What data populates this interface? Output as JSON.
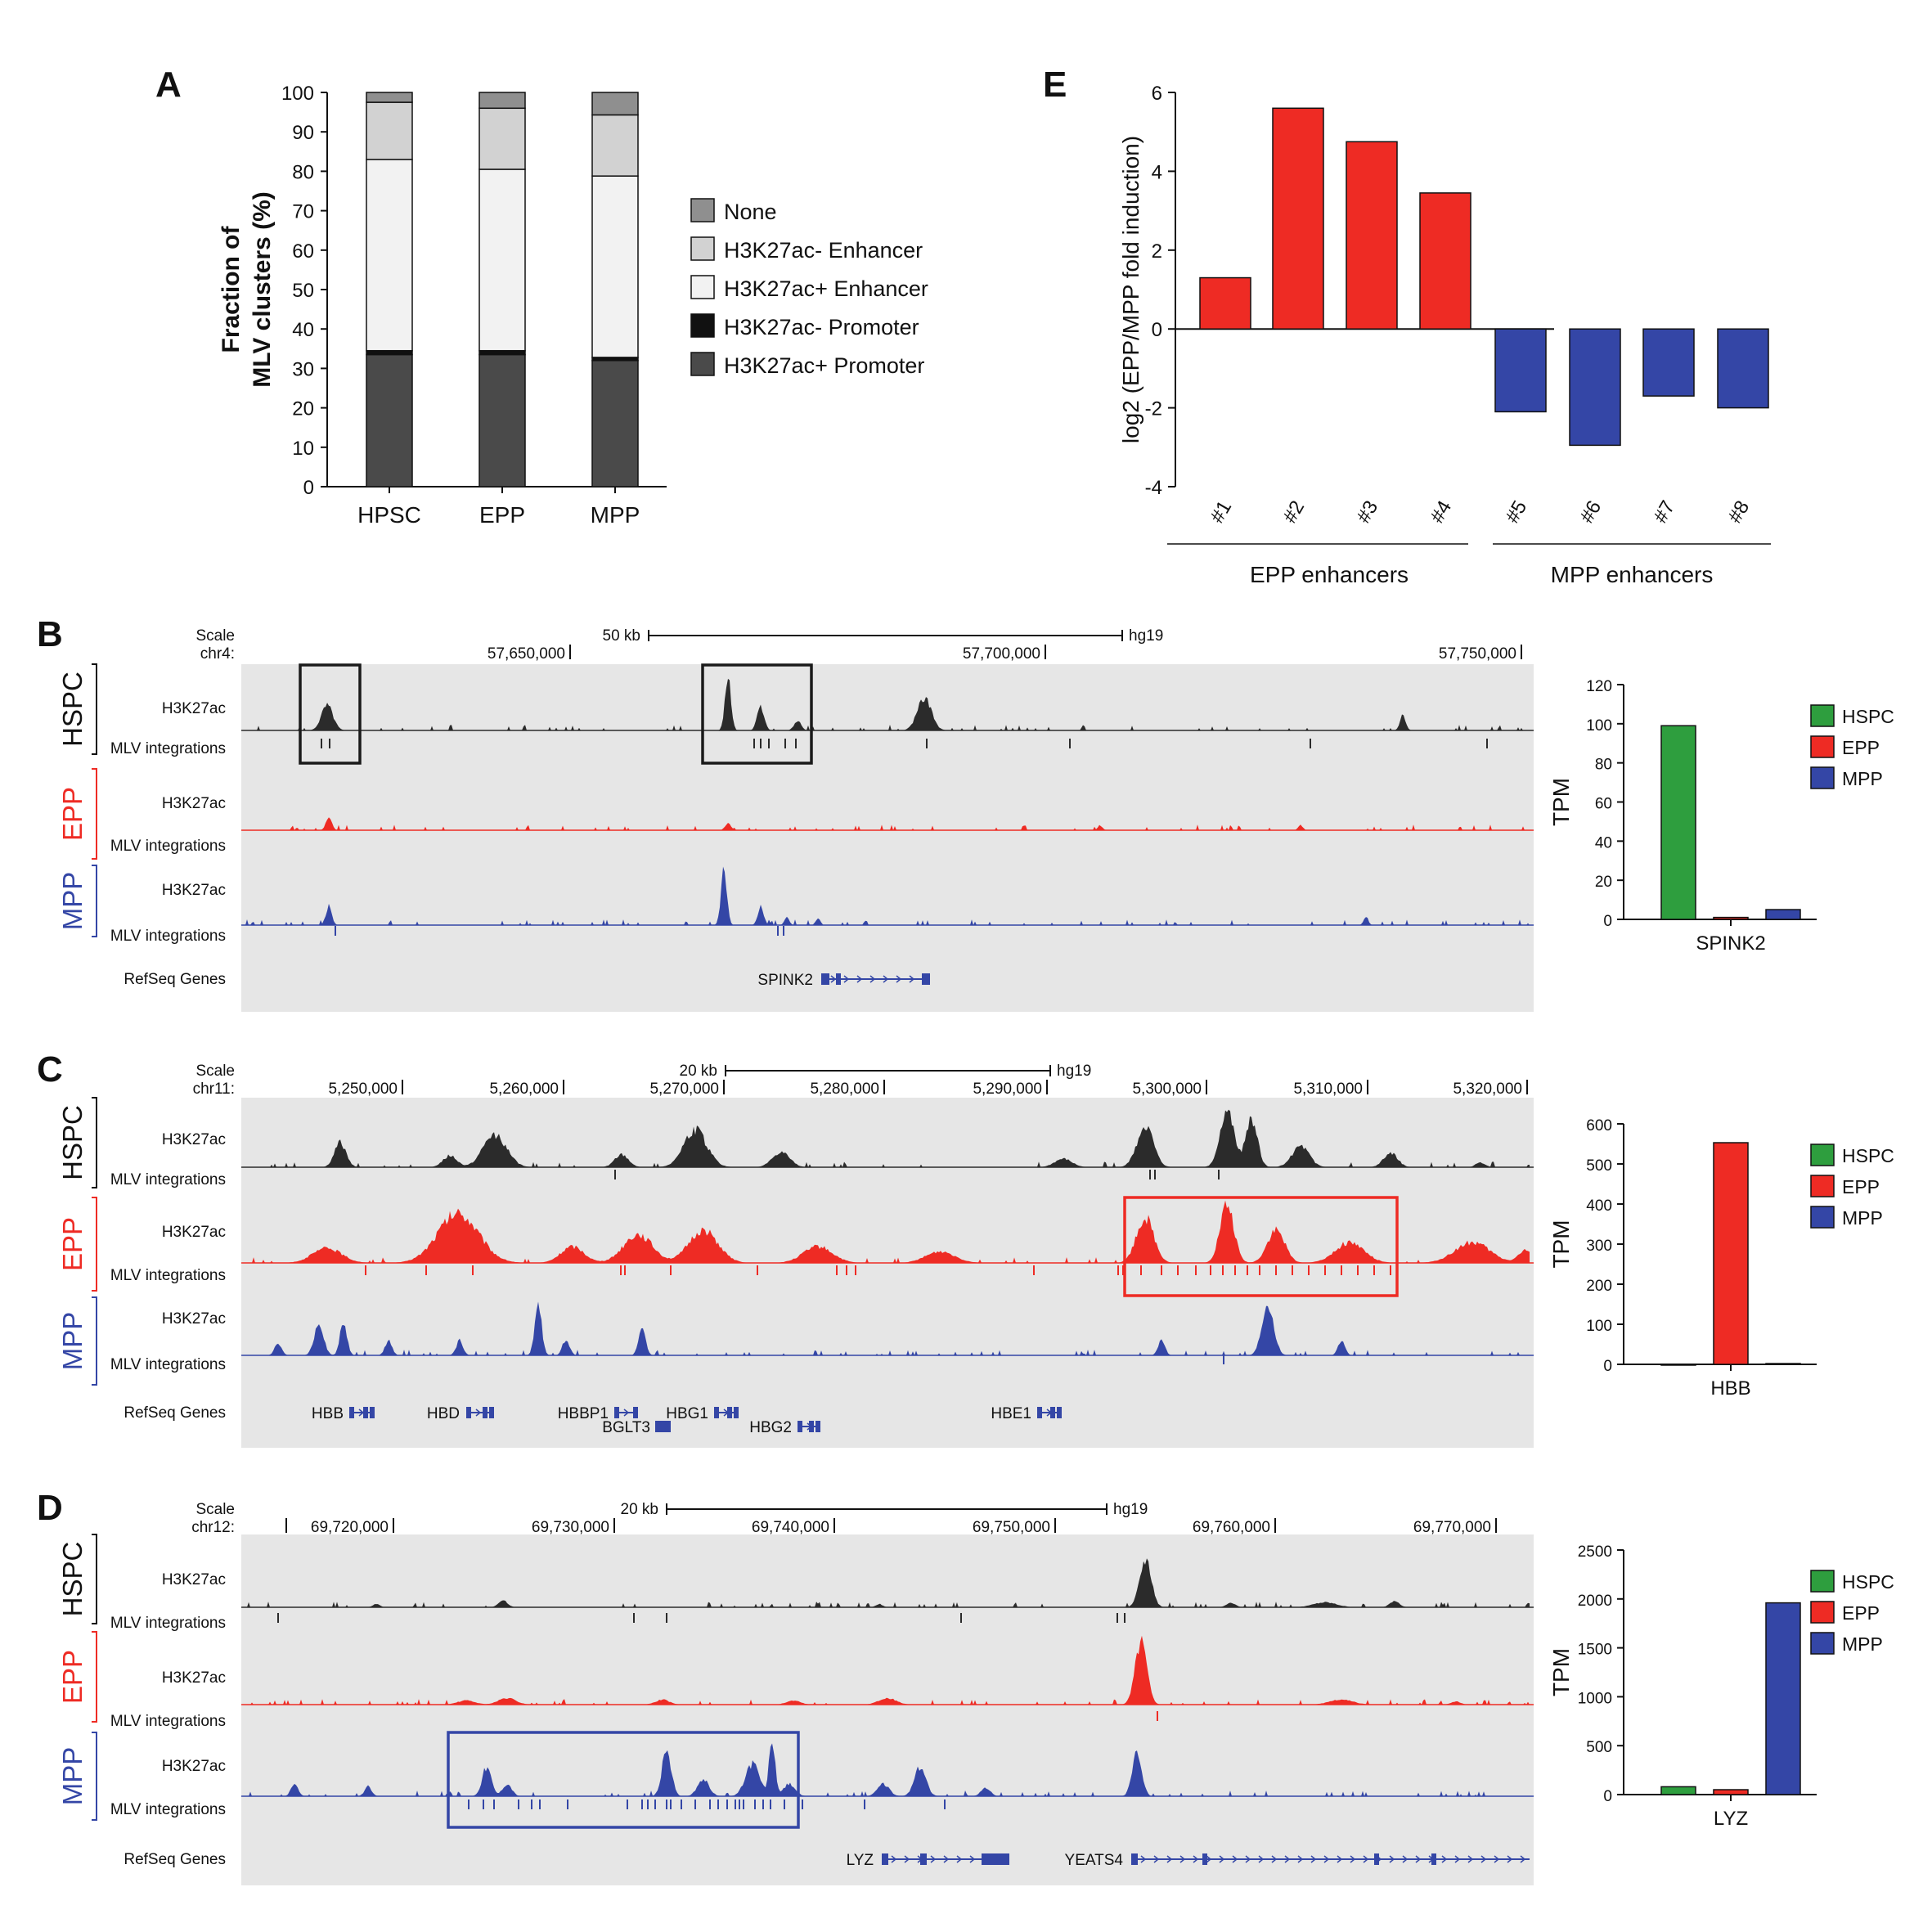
{
  "panel_labels": {
    "A": "A",
    "B": "B",
    "C": "C",
    "D": "D",
    "E": "E"
  },
  "colors": {
    "hspc": "#2e9e3e",
    "epp": "#ee2b24",
    "mpp": "#3446a6",
    "hspc_track": "#2b2b2b",
    "none": "#8f8f8f",
    "k27neg_enh": "#d2d2d2",
    "k27pos_enh": "#f2f2f2",
    "k27neg_prom": "#111111",
    "k27pos_prom": "#4a4a4a"
  },
  "chart_data": [
    {
      "id": "A",
      "type": "bar",
      "stacked": true,
      "categories": [
        "HPSC",
        "EPP",
        "MPP"
      ],
      "ylabel": [
        "Fraction of",
        "MLV clusters (%)"
      ],
      "ylim": [
        0,
        100
      ],
      "yticks": [
        "0",
        "10",
        "20",
        "30",
        "40",
        "50",
        "60",
        "70",
        "80",
        "90",
        "100"
      ],
      "series": [
        {
          "name": "H3K27ac+ Promoter",
          "color": "#4a4a4a",
          "values": [
            33.5,
            33.5,
            32
          ]
        },
        {
          "name": "H3K27ac- Promoter",
          "color": "#111111",
          "values": [
            1,
            1,
            0.8
          ]
        },
        {
          "name": "H3K27ac+ Enhancer",
          "color": "#f2f2f2",
          "values": [
            48.5,
            46,
            46
          ]
        },
        {
          "name": "H3K27ac- Enhancer",
          "color": "#d2d2d2",
          "values": [
            14.5,
            15.5,
            15.5
          ]
        },
        {
          "name": "None",
          "color": "#8f8f8f",
          "values": [
            2.5,
            4,
            5.7
          ]
        }
      ],
      "legend": [
        "None",
        "H3K27ac- Enhancer",
        "H3K27ac+ Enhancer",
        "H3K27ac- Promoter",
        "H3K27ac+ Promoter"
      ]
    },
    {
      "id": "E",
      "type": "bar",
      "categories": [
        "#1",
        "#2",
        "#3",
        "#4",
        "#5",
        "#6",
        "#7",
        "#8"
      ],
      "values": [
        1.3,
        5.6,
        4.75,
        3.45,
        -2.1,
        -2.95,
        -1.7,
        -2.0
      ],
      "ylabel": "log2 (EPP/MPP fold induction)",
      "ylim": [
        -4,
        6
      ],
      "yticks": [
        "-4",
        "-2",
        "0",
        "2",
        "4",
        "6"
      ],
      "groups": [
        {
          "label": "EPP enhancers",
          "color": "#ee2b24"
        },
        {
          "label": "MPP enhancers",
          "color": "#3446a6"
        }
      ]
    },
    {
      "id": "B-tpm",
      "type": "bar",
      "categories": [
        "HSPC",
        "EPP",
        "MPP"
      ],
      "values": [
        99,
        1,
        5
      ],
      "ylabel": "TPM",
      "ylim": [
        0,
        120
      ],
      "yticks": [
        "0",
        "20",
        "40",
        "60",
        "80",
        "100",
        "120"
      ],
      "xlabel": "SPINK2"
    },
    {
      "id": "C-tpm",
      "type": "bar",
      "categories": [
        "HSPC",
        "EPP",
        "MPP"
      ],
      "values": [
        0,
        553,
        2
      ],
      "ylabel": "TPM",
      "ylim": [
        0,
        600
      ],
      "yticks": [
        "0",
        "100",
        "200",
        "300",
        "400",
        "500",
        "600"
      ],
      "xlabel": "HBB"
    },
    {
      "id": "D-tpm",
      "type": "bar",
      "categories": [
        "HSPC",
        "EPP",
        "MPP"
      ],
      "values": [
        80,
        50,
        1960
      ],
      "ylabel": "TPM",
      "ylim": [
        0,
        2500
      ],
      "yticks": [
        "0",
        "500",
        "1000",
        "1500",
        "2000",
        "2500"
      ],
      "xlabel": "LYZ"
    },
    {
      "id": "B-browser",
      "type": "table",
      "scale_label": "Scale",
      "chr": "chr4:",
      "scalebar": "50 kb",
      "assembly": "hg19",
      "coords": [
        "57,650,000",
        "57,700,000",
        "57,750,000"
      ],
      "rows": {
        "cell_labels": [
          "HSPC",
          "EPP",
          "MPP"
        ],
        "track_h3k27ac": "H3K27ac",
        "track_mlv": "MLV integrations",
        "genes": "RefSeq Genes"
      },
      "gene_names": [
        "SPINK2"
      ]
    },
    {
      "id": "C-browser",
      "type": "table",
      "scale_label": "Scale",
      "chr": "chr11:",
      "scalebar": "20 kb",
      "assembly": "hg19",
      "coords": [
        "5,250,000",
        "5,260,000",
        "5,270,000",
        "5,280,000",
        "5,290,000",
        "5,300,000",
        "5,310,000",
        "5,320,000"
      ],
      "rows": {
        "cell_labels": [
          "HSPC",
          "EPP",
          "MPP"
        ],
        "track_h3k27ac": "H3K27ac",
        "track_mlv": "MLV integrations",
        "genes": "RefSeq Genes"
      },
      "gene_names": [
        "HBB",
        "HBD",
        "HBBP1",
        "BGLT3",
        "HBG1",
        "HBG2",
        "HBE1"
      ]
    },
    {
      "id": "D-browser",
      "type": "table",
      "scale_label": "Scale",
      "chr": "chr12:",
      "scalebar": "20 kb",
      "assembly": "hg19",
      "coords": [
        "69,720,000",
        "69,730,000",
        "69,740,000",
        "69,750,000",
        "69,760,000",
        "69,770,000"
      ],
      "rows": {
        "cell_labels": [
          "HSPC",
          "EPP",
          "MPP"
        ],
        "track_h3k27ac": "H3K27ac",
        "track_mlv": "MLV integrations",
        "genes": "RefSeq Genes"
      },
      "gene_names": [
        "LYZ",
        "YEATS4"
      ]
    }
  ]
}
